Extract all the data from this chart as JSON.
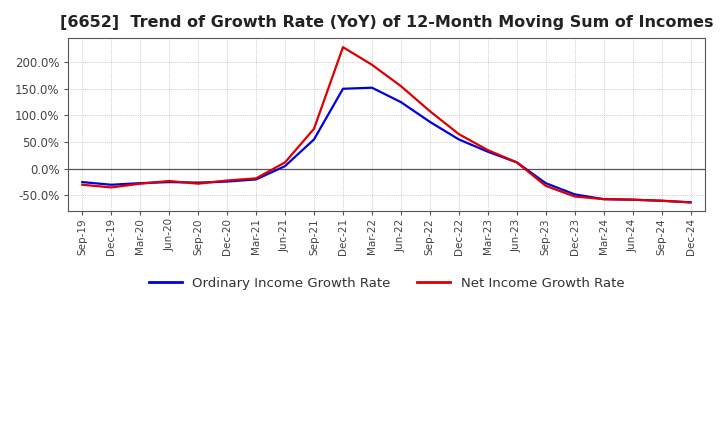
{
  "title": "[6652]  Trend of Growth Rate (YoY) of 12-Month Moving Sum of Incomes",
  "title_fontsize": 11.5,
  "background_color": "#ffffff",
  "grid_color": "#aaaaaa",
  "ylim": [
    -80,
    245
  ],
  "yticks": [
    -50,
    0,
    50,
    100,
    150,
    200
  ],
  "ytick_labels": [
    "-50.0%",
    "0.0%",
    "50.0%",
    "100.0%",
    "150.0%",
    "200.0%"
  ],
  "legend_labels": [
    "Ordinary Income Growth Rate",
    "Net Income Growth Rate"
  ],
  "legend_colors": [
    "#0000dd",
    "#dd0000"
  ],
  "x_labels": [
    "Sep-19",
    "Dec-19",
    "Mar-20",
    "Jun-20",
    "Sep-20",
    "Dec-20",
    "Mar-21",
    "Jun-21",
    "Sep-21",
    "Dec-21",
    "Mar-22",
    "Jun-22",
    "Sep-22",
    "Dec-22",
    "Mar-23",
    "Jun-23",
    "Sep-23",
    "Dec-23",
    "Mar-24",
    "Jun-24",
    "Sep-24",
    "Dec-24"
  ],
  "ordinary_income": [
    -25,
    -30,
    -27,
    -25,
    -26,
    -24,
    -20,
    5,
    55,
    150,
    152,
    125,
    88,
    55,
    32,
    12,
    -27,
    -48,
    -57,
    -58,
    -60,
    -63
  ],
  "net_income": [
    -30,
    -35,
    -28,
    -23,
    -28,
    -22,
    -18,
    12,
    75,
    228,
    195,
    155,
    108,
    65,
    35,
    12,
    -32,
    -52,
    -57,
    -58,
    -60,
    -63
  ],
  "zero_line_color": "#555555",
  "border_color": "#555555"
}
